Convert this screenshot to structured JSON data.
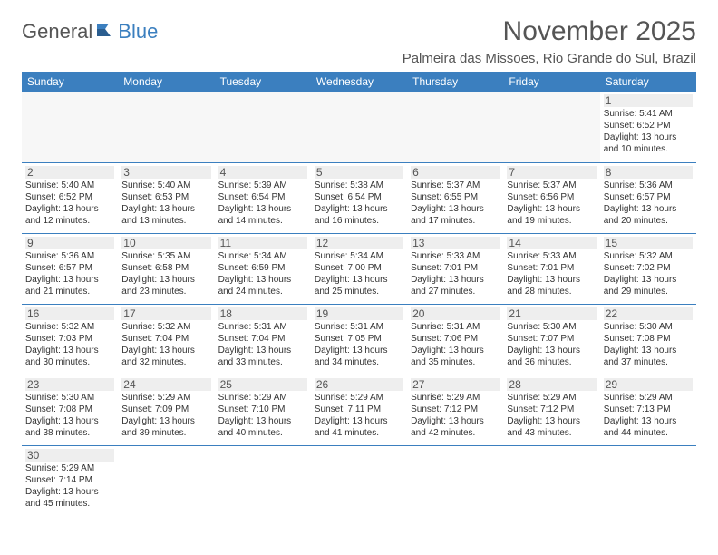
{
  "logo": {
    "part1": "General",
    "part2": "Blue"
  },
  "title": "November 2025",
  "location": "Palmeira das Missoes, Rio Grande do Sul, Brazil",
  "dayHeaders": [
    "Sunday",
    "Monday",
    "Tuesday",
    "Wednesday",
    "Thursday",
    "Friday",
    "Saturday"
  ],
  "colors": {
    "headerBg": "#3b7fbf",
    "headerText": "#ffffff",
    "rowBorder": "#3b7fbf",
    "titleText": "#555555",
    "bodyText": "#333333"
  },
  "typography": {
    "title_fontsize": 30,
    "location_fontsize": 15,
    "dayheader_fontsize": 12,
    "daynum_fontsize": 12,
    "cell_fontsize": 10
  },
  "weeks": [
    [
      {
        "blank": true
      },
      {
        "blank": true
      },
      {
        "blank": true
      },
      {
        "blank": true
      },
      {
        "blank": true
      },
      {
        "blank": true
      },
      {
        "day": "1",
        "sunrise": "Sunrise: 5:41 AM",
        "sunset": "Sunset: 6:52 PM",
        "daylight1": "Daylight: 13 hours",
        "daylight2": "and 10 minutes."
      }
    ],
    [
      {
        "day": "2",
        "sunrise": "Sunrise: 5:40 AM",
        "sunset": "Sunset: 6:52 PM",
        "daylight1": "Daylight: 13 hours",
        "daylight2": "and 12 minutes."
      },
      {
        "day": "3",
        "sunrise": "Sunrise: 5:40 AM",
        "sunset": "Sunset: 6:53 PM",
        "daylight1": "Daylight: 13 hours",
        "daylight2": "and 13 minutes."
      },
      {
        "day": "4",
        "sunrise": "Sunrise: 5:39 AM",
        "sunset": "Sunset: 6:54 PM",
        "daylight1": "Daylight: 13 hours",
        "daylight2": "and 14 minutes."
      },
      {
        "day": "5",
        "sunrise": "Sunrise: 5:38 AM",
        "sunset": "Sunset: 6:54 PM",
        "daylight1": "Daylight: 13 hours",
        "daylight2": "and 16 minutes."
      },
      {
        "day": "6",
        "sunrise": "Sunrise: 5:37 AM",
        "sunset": "Sunset: 6:55 PM",
        "daylight1": "Daylight: 13 hours",
        "daylight2": "and 17 minutes."
      },
      {
        "day": "7",
        "sunrise": "Sunrise: 5:37 AM",
        "sunset": "Sunset: 6:56 PM",
        "daylight1": "Daylight: 13 hours",
        "daylight2": "and 19 minutes."
      },
      {
        "day": "8",
        "sunrise": "Sunrise: 5:36 AM",
        "sunset": "Sunset: 6:57 PM",
        "daylight1": "Daylight: 13 hours",
        "daylight2": "and 20 minutes."
      }
    ],
    [
      {
        "day": "9",
        "sunrise": "Sunrise: 5:36 AM",
        "sunset": "Sunset: 6:57 PM",
        "daylight1": "Daylight: 13 hours",
        "daylight2": "and 21 minutes."
      },
      {
        "day": "10",
        "sunrise": "Sunrise: 5:35 AM",
        "sunset": "Sunset: 6:58 PM",
        "daylight1": "Daylight: 13 hours",
        "daylight2": "and 23 minutes."
      },
      {
        "day": "11",
        "sunrise": "Sunrise: 5:34 AM",
        "sunset": "Sunset: 6:59 PM",
        "daylight1": "Daylight: 13 hours",
        "daylight2": "and 24 minutes."
      },
      {
        "day": "12",
        "sunrise": "Sunrise: 5:34 AM",
        "sunset": "Sunset: 7:00 PM",
        "daylight1": "Daylight: 13 hours",
        "daylight2": "and 25 minutes."
      },
      {
        "day": "13",
        "sunrise": "Sunrise: 5:33 AM",
        "sunset": "Sunset: 7:01 PM",
        "daylight1": "Daylight: 13 hours",
        "daylight2": "and 27 minutes."
      },
      {
        "day": "14",
        "sunrise": "Sunrise: 5:33 AM",
        "sunset": "Sunset: 7:01 PM",
        "daylight1": "Daylight: 13 hours",
        "daylight2": "and 28 minutes."
      },
      {
        "day": "15",
        "sunrise": "Sunrise: 5:32 AM",
        "sunset": "Sunset: 7:02 PM",
        "daylight1": "Daylight: 13 hours",
        "daylight2": "and 29 minutes."
      }
    ],
    [
      {
        "day": "16",
        "sunrise": "Sunrise: 5:32 AM",
        "sunset": "Sunset: 7:03 PM",
        "daylight1": "Daylight: 13 hours",
        "daylight2": "and 30 minutes."
      },
      {
        "day": "17",
        "sunrise": "Sunrise: 5:32 AM",
        "sunset": "Sunset: 7:04 PM",
        "daylight1": "Daylight: 13 hours",
        "daylight2": "and 32 minutes."
      },
      {
        "day": "18",
        "sunrise": "Sunrise: 5:31 AM",
        "sunset": "Sunset: 7:04 PM",
        "daylight1": "Daylight: 13 hours",
        "daylight2": "and 33 minutes."
      },
      {
        "day": "19",
        "sunrise": "Sunrise: 5:31 AM",
        "sunset": "Sunset: 7:05 PM",
        "daylight1": "Daylight: 13 hours",
        "daylight2": "and 34 minutes."
      },
      {
        "day": "20",
        "sunrise": "Sunrise: 5:31 AM",
        "sunset": "Sunset: 7:06 PM",
        "daylight1": "Daylight: 13 hours",
        "daylight2": "and 35 minutes."
      },
      {
        "day": "21",
        "sunrise": "Sunrise: 5:30 AM",
        "sunset": "Sunset: 7:07 PM",
        "daylight1": "Daylight: 13 hours",
        "daylight2": "and 36 minutes."
      },
      {
        "day": "22",
        "sunrise": "Sunrise: 5:30 AM",
        "sunset": "Sunset: 7:08 PM",
        "daylight1": "Daylight: 13 hours",
        "daylight2": "and 37 minutes."
      }
    ],
    [
      {
        "day": "23",
        "sunrise": "Sunrise: 5:30 AM",
        "sunset": "Sunset: 7:08 PM",
        "daylight1": "Daylight: 13 hours",
        "daylight2": "and 38 minutes."
      },
      {
        "day": "24",
        "sunrise": "Sunrise: 5:29 AM",
        "sunset": "Sunset: 7:09 PM",
        "daylight1": "Daylight: 13 hours",
        "daylight2": "and 39 minutes."
      },
      {
        "day": "25",
        "sunrise": "Sunrise: 5:29 AM",
        "sunset": "Sunset: 7:10 PM",
        "daylight1": "Daylight: 13 hours",
        "daylight2": "and 40 minutes."
      },
      {
        "day": "26",
        "sunrise": "Sunrise: 5:29 AM",
        "sunset": "Sunset: 7:11 PM",
        "daylight1": "Daylight: 13 hours",
        "daylight2": "and 41 minutes."
      },
      {
        "day": "27",
        "sunrise": "Sunrise: 5:29 AM",
        "sunset": "Sunset: 7:12 PM",
        "daylight1": "Daylight: 13 hours",
        "daylight2": "and 42 minutes."
      },
      {
        "day": "28",
        "sunrise": "Sunrise: 5:29 AM",
        "sunset": "Sunset: 7:12 PM",
        "daylight1": "Daylight: 13 hours",
        "daylight2": "and 43 minutes."
      },
      {
        "day": "29",
        "sunrise": "Sunrise: 5:29 AM",
        "sunset": "Sunset: 7:13 PM",
        "daylight1": "Daylight: 13 hours",
        "daylight2": "and 44 minutes."
      }
    ],
    [
      {
        "day": "30",
        "sunrise": "Sunrise: 5:29 AM",
        "sunset": "Sunset: 7:14 PM",
        "daylight1": "Daylight: 13 hours",
        "daylight2": "and 45 minutes."
      },
      {
        "blank": true
      },
      {
        "blank": true
      },
      {
        "blank": true
      },
      {
        "blank": true
      },
      {
        "blank": true
      },
      {
        "blank": true
      }
    ]
  ]
}
